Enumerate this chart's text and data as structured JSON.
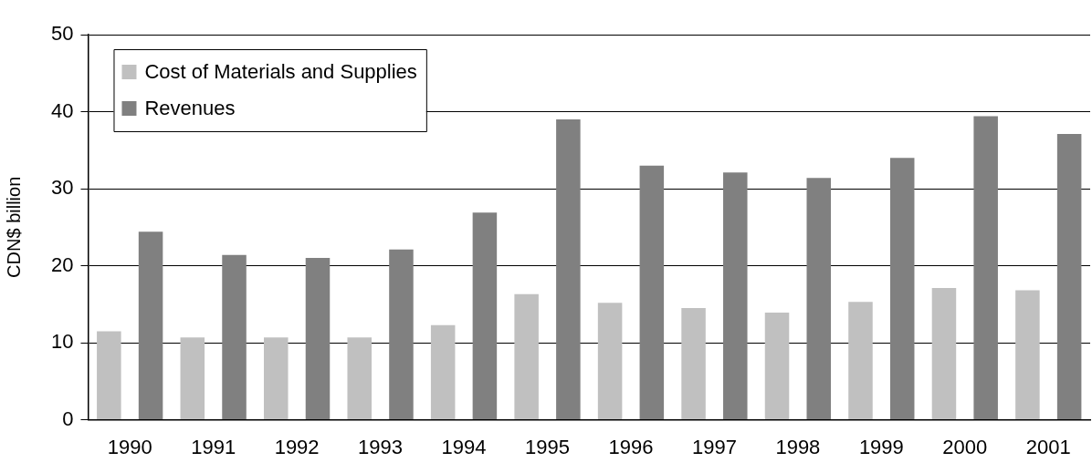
{
  "chart_data": {
    "type": "bar",
    "ylabel": "CDN$ billion",
    "categories": [
      "1990",
      "1991",
      "1992",
      "1993",
      "1994",
      "1995",
      "1996",
      "1997",
      "1998",
      "1999",
      "2000",
      "2001"
    ],
    "series": [
      {
        "name": "Cost of Materials and Supplies",
        "color": "#c0c0c0",
        "values": [
          11.5,
          10.7,
          10.7,
          10.7,
          12.3,
          16.3,
          15.2,
          14.5,
          13.9,
          15.3,
          17.1,
          16.8
        ]
      },
      {
        "name": "Revenues",
        "color": "#808080",
        "values": [
          24.4,
          21.4,
          21.0,
          22.1,
          26.9,
          39.0,
          33.0,
          32.1,
          31.4,
          34.0,
          39.4,
          37.1
        ]
      }
    ],
    "ylim": [
      0,
      50
    ],
    "yticks": [
      0,
      10,
      20,
      30,
      40,
      50
    ],
    "grid": "y",
    "legend": "top left"
  }
}
